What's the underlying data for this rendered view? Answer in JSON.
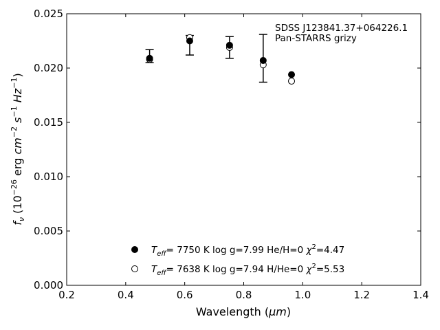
{
  "chart_data": {
    "type": "scatter",
    "xlabel_main": "Wavelength (",
    "xlabel_unit": "μm",
    "xlabel_end": ")",
    "ylabel_fnu": "f",
    "ylabel_nu": "ν",
    "ylabel_p1": " (10",
    "ylabel_exp26": "−26",
    "ylabel_p2": " erg ",
    "ylabel_cm": "cm",
    "ylabel_exp2": "−2",
    "ylabel_s": " s",
    "ylabel_exp1": "−1",
    "ylabel_hz": " Hz",
    "ylabel_exp1b": "−1",
    "ylabel_end": ")",
    "xlim": [
      0.2,
      1.4
    ],
    "ylim": [
      0.0,
      0.025
    ],
    "xticks": [
      "0.2",
      "0.4",
      "0.6",
      "0.8",
      "1.0",
      "1.2",
      "1.4"
    ],
    "xtick_values": [
      0.2,
      0.4,
      0.6,
      0.8,
      1.0,
      1.2,
      1.4
    ],
    "yticks": [
      "0.000",
      "0.005",
      "0.010",
      "0.015",
      "0.020",
      "0.025"
    ],
    "ytick_values": [
      0.0,
      0.005,
      0.01,
      0.015,
      0.02,
      0.025
    ],
    "grid": false,
    "annotation_lines": [
      "SDSS J123841.37+064226.1",
      "Pan-STARRS grizy"
    ],
    "observed": {
      "x": [
        0.481,
        0.617,
        0.752,
        0.866,
        0.962
      ],
      "y": [
        0.0211,
        0.0221,
        0.0219,
        0.0209,
        0.0194
      ],
      "yerr": [
        0.0006,
        0.0009,
        0.001,
        0.0022,
        0
      ]
    },
    "series": [
      {
        "marker": "filled",
        "x": [
          0.481,
          0.617,
          0.752,
          0.866,
          0.962
        ],
        "y": [
          0.0209,
          0.0225,
          0.0221,
          0.0207,
          0.0194
        ],
        "label_teff": "T",
        "label_eff": "eff",
        "label_rest": "=  7750 K  log g=7.99  He/H=0  ",
        "label_chi": "χ",
        "label_chi_exp": "2",
        "label_chi_val": "=4.47"
      },
      {
        "marker": "open",
        "x": [
          0.481,
          0.617,
          0.752,
          0.866,
          0.962
        ],
        "y": [
          0.0208,
          0.0228,
          0.0219,
          0.0203,
          0.0188
        ],
        "label_teff": "T",
        "label_eff": "eff",
        "label_rest": "=  7638 K  log g=7.94  H/He=0  ",
        "label_chi": "χ",
        "label_chi_exp": "2",
        "label_chi_val": "=5.53"
      }
    ],
    "marker_color": "#000000"
  }
}
